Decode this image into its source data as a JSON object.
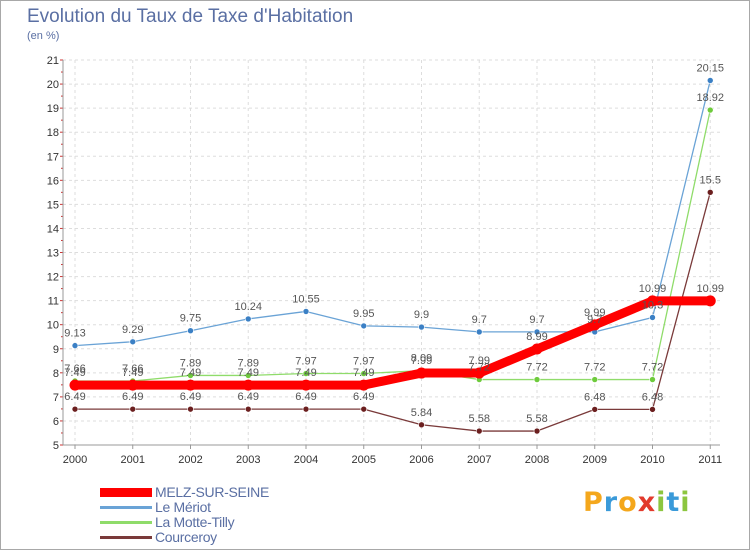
{
  "title": "Evolution du Taux de Taxe d'Habitation",
  "subtitle": "(en %)",
  "logo": {
    "text": "Proxiti",
    "letters": [
      {
        "ch": "P",
        "color": "#f4a71c"
      },
      {
        "ch": "r",
        "color": "#3a9ad9"
      },
      {
        "ch": "o",
        "color": "#f4a71c"
      },
      {
        "ch": "x",
        "color": "#e23a2c"
      },
      {
        "ch": "i",
        "color": "#8cc63f"
      },
      {
        "ch": "t",
        "color": "#3a9ad9"
      },
      {
        "ch": "i",
        "color": "#8cc63f"
      }
    ]
  },
  "chart_data": {
    "type": "line",
    "title": "Evolution du Taux de Taxe d'Habitation",
    "subtitle": "(en %)",
    "x": [
      "2000",
      "2001",
      "2002",
      "2003",
      "2004",
      "2005",
      "2006",
      "2007",
      "2008",
      "2009",
      "2010",
      "2011"
    ],
    "yticks": [
      "5",
      "6",
      "7",
      "8",
      "9",
      "10",
      "11",
      "12",
      "13",
      "14",
      "15",
      "16",
      "17",
      "18",
      "19",
      "20",
      "21"
    ],
    "ylim": [
      5,
      21
    ],
    "legend_position": "bottom-left",
    "series": [
      {
        "name": "MELZ-SUR-SEINE",
        "color": "#ff0000",
        "marker": "#ff0000",
        "width": 9,
        "values": [
          7.49,
          7.49,
          7.49,
          7.49,
          7.49,
          7.49,
          7.99,
          7.99,
          8.99,
          9.99,
          10.99,
          10.99
        ],
        "labels": [
          "7.49",
          "7.49",
          "7.49",
          "7.49",
          "7.49",
          "7.49",
          "7.99",
          "7.99",
          "8.99",
          "9.99",
          "10.99",
          "10.99"
        ]
      },
      {
        "name": "Le Mériot",
        "color": "#6aa3d6",
        "marker": "#3b80c5",
        "width": 1.3,
        "values": [
          9.13,
          9.29,
          9.75,
          10.24,
          10.55,
          9.95,
          9.9,
          9.7,
          9.7,
          9.7,
          10.3,
          20.15
        ],
        "labels": [
          "9.13",
          "9.29",
          "9.75",
          "10.24",
          "10.55",
          "9.95",
          "9.9",
          "9.7",
          "9.7",
          "9.7",
          "10.3",
          "20.15"
        ]
      },
      {
        "name": "La Motte-Tilly",
        "color": "#8fdc6a",
        "marker": "#6ecb3c",
        "width": 1.3,
        "values": [
          7.66,
          7.66,
          7.89,
          7.89,
          7.97,
          7.97,
          8.09,
          7.72,
          7.72,
          7.72,
          7.72,
          18.92
        ],
        "labels": [
          "7.66",
          "7.66",
          "7.89",
          "7.89",
          "7.97",
          "7.97",
          "8.09",
          "7.72",
          "7.72",
          "7.72",
          "7.72",
          "18.92"
        ]
      },
      {
        "name": "Courceroy",
        "color": "#7a3a3a",
        "marker": "#6b1f1f",
        "width": 1.3,
        "values": [
          6.49,
          6.49,
          6.49,
          6.49,
          6.49,
          6.49,
          5.84,
          5.58,
          5.58,
          6.48,
          6.48,
          15.5
        ],
        "labels": [
          "6.49",
          "6.49",
          "6.49",
          "6.49",
          "6.49",
          "6.49",
          "5.84",
          "5.58",
          "5.58",
          "6.48",
          "6.48",
          "15.5"
        ]
      }
    ]
  }
}
